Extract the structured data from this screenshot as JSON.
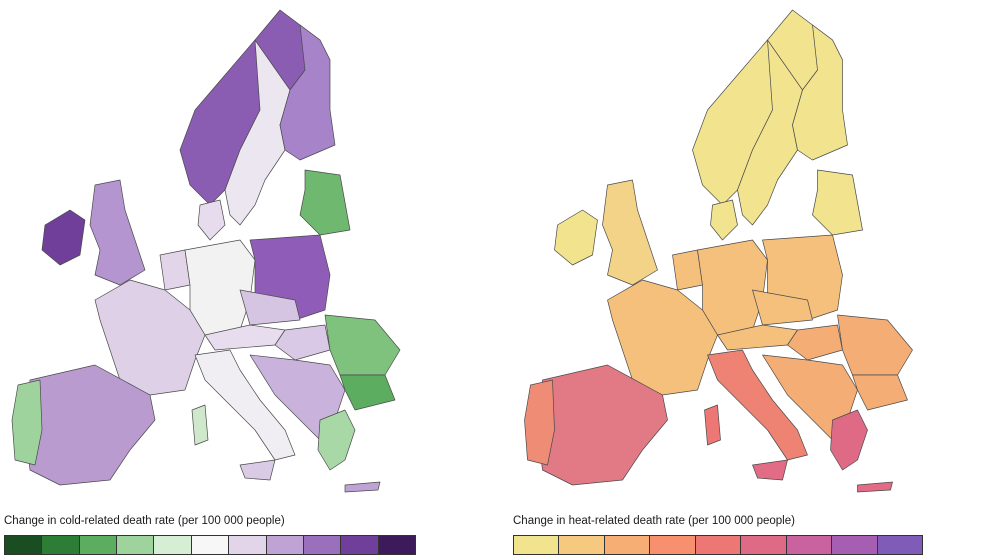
{
  "cold_panel": {
    "legend_title": "Change in cold-related death rate (per 100 000 people)",
    "palette": [
      "#1b4d22",
      "#2e7d36",
      "#5cad5f",
      "#9fd39d",
      "#d6eed4",
      "#f7f7f7",
      "#e2d5ea",
      "#bfa3d4",
      "#9a6fbb",
      "#6f3f9a",
      "#3d1a5a"
    ],
    "region_colors": {
      "norway": "#8a5cb2",
      "sweden": "#ece6f0",
      "finland": "#a783c9",
      "ireland": "#6f3f9a",
      "uk": "#b495cf",
      "iceland_west": "#9a6fbb",
      "france": "#ddd0e7",
      "iberia": "#b99bd0",
      "portugal": "#9fd39d",
      "benelux": "#e2d5ea",
      "germany": "#f2f2f2",
      "denmark": "#e6dced",
      "poland": "#8f5cb8",
      "baltics": "#6fb86f",
      "czech": "#d6c4e3",
      "austria": "#e8ddef",
      "italy": "#f0eef2",
      "sardinia": "#cfe8cc",
      "sicily": "#d9cbe5",
      "balkans": "#c9b3dd",
      "hungary": "#d9c8e6",
      "romania": "#7ec27d",
      "bulgaria": "#5cad5f",
      "greece": "#a8d8a5",
      "crete": "#bfa3d4"
    }
  },
  "heat_panel": {
    "legend_title": "Change in heat-related death rate (per 100 000 people)",
    "palette": [
      "#f2e38e",
      "#f5c97f",
      "#f7ae74",
      "#f6906e",
      "#ec7774",
      "#df6a86",
      "#c9629e",
      "#a65eb2",
      "#7f5cb8"
    ],
    "region_colors": {
      "norway": "#f2e38e",
      "sweden": "#f2e38e",
      "finland": "#f2e38e",
      "ireland": "#f2e38e",
      "uk": "#f3d388",
      "iceland_west": "#f2e38e",
      "france": "#f5c07c",
      "iberia": "#e27a86",
      "portugal": "#ee8c76",
      "benelux": "#f5c07c",
      "germany": "#f5c07c",
      "denmark": "#f2e38e",
      "poland": "#f5c07c",
      "baltics": "#f2e38e",
      "czech": "#f5c07c",
      "austria": "#f5c07c",
      "italy": "#ee8373",
      "sardinia": "#ec7774",
      "sicily": "#e26c86",
      "balkans": "#f4ad75",
      "hungary": "#f4ad75",
      "romania": "#f4ad75",
      "bulgaria": "#f4ad75",
      "greece": "#df6a86",
      "crete": "#e26c86"
    }
  }
}
